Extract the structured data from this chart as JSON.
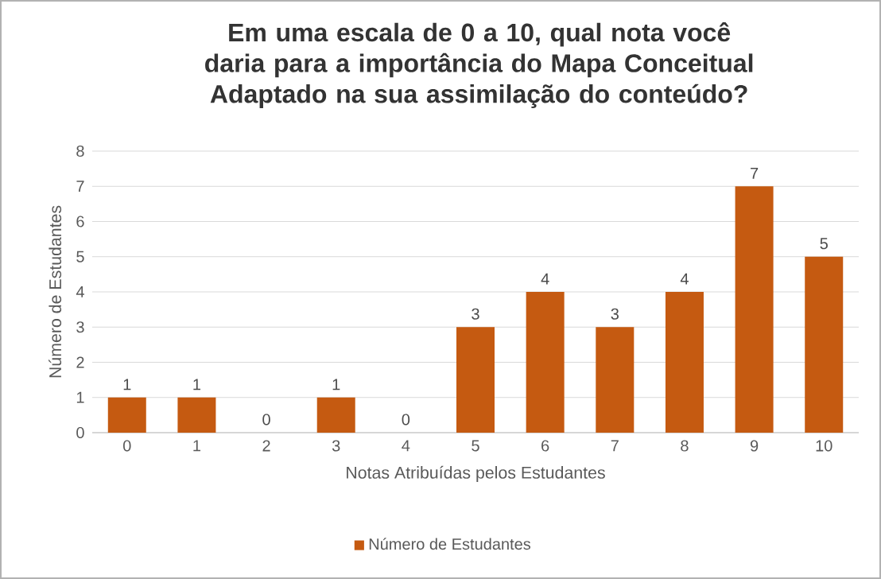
{
  "chart_data": {
    "type": "bar",
    "title": "Em uma escala de 0 a 10, qual nota você daria para a importância do Mapa Conceitual Adaptado na sua assimilação do conteúdo?",
    "xlabel": "Notas Atribuídas pelos Estudantes",
    "ylabel": "Número  de Estudantes",
    "categories": [
      "0",
      "1",
      "2",
      "3",
      "4",
      "5",
      "6",
      "7",
      "8",
      "9",
      "10"
    ],
    "series": [
      {
        "name": "Número de Estudantes",
        "color": "#c55a11",
        "values": [
          1,
          1,
          0,
          1,
          0,
          3,
          4,
          3,
          4,
          7,
          5
        ]
      }
    ],
    "ylim": [
      0,
      8
    ],
    "yticks": [
      0,
      1,
      2,
      3,
      4,
      5,
      6,
      7,
      8
    ],
    "grid": "y",
    "legend": "bottom",
    "data_labels": true
  }
}
